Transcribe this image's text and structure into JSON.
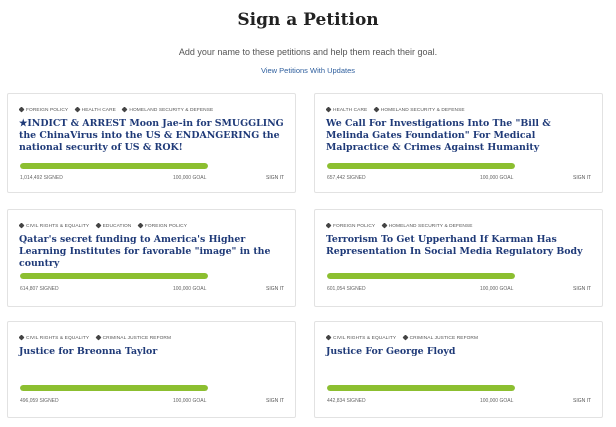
{
  "page": {
    "title": "Sign a Petition",
    "subtitle": "Add your name to these petitions and help them reach their goal.",
    "updates_link": "View Petitions With Updates"
  },
  "petitions": [
    {
      "tags": [
        "FOREIGN POLICY",
        "HEALTH CARE",
        "HOMELAND SECURITY & DEFENSE"
      ],
      "title": "★INDICT & ARREST Moon Jae-in for SMUGGLING the ChinaVirus into the US & ENDANGERING the national security of US & ROK!",
      "signed": "1,014,492 SIGNED",
      "goal": "100,000 GOAL",
      "sign_label": "SIGN IT",
      "progress": 1.0
    },
    {
      "tags": [
        "HEALTH CARE",
        "HOMELAND SECURITY & DEFENSE"
      ],
      "title": "We Call For Investigations Into The \"Bill & Melinda Gates Foundation\" For Medical Malpractice & Crimes Against Humanity",
      "signed": "657,442 SIGNED",
      "goal": "100,000 GOAL",
      "sign_label": "SIGN IT",
      "progress": 1.0
    },
    {
      "tags": [
        "CIVIL RIGHTS & EQUALITY",
        "EDUCATION",
        "FOREIGN POLICY"
      ],
      "title": "Qatar's secret funding to America's Higher Learning Institutes for favorable \"image\" in the country",
      "signed": "614,807 SIGNED",
      "goal": "100,000 GOAL",
      "sign_label": "SIGN IT",
      "progress": 1.0
    },
    {
      "tags": [
        "FOREIGN POLICY",
        "HOMELAND SECURITY & DEFENSE"
      ],
      "title": "Terrorism To Get Upperhand If Karman Has Representation In Social Media Regulatory Body",
      "signed": "601,054 SIGNED",
      "goal": "100,000 GOAL",
      "sign_label": "SIGN IT",
      "progress": 1.0
    },
    {
      "tags": [
        "CIVIL RIGHTS & EQUALITY",
        "CRIMINAL JUSTICE REFORM"
      ],
      "title": "Justice for Breonna Taylor",
      "signed": "496,059 SIGNED",
      "goal": "100,000 GOAL",
      "sign_label": "SIGN IT",
      "progress": 1.0
    },
    {
      "tags": [
        "CIVIL RIGHTS & EQUALITY",
        "CRIMINAL JUSTICE REFORM"
      ],
      "title": "Justice For George Floyd",
      "signed": "442,834 SIGNED",
      "goal": "100,000 GOAL",
      "sign_label": "SIGN IT",
      "progress": 1.0
    }
  ],
  "colors": {
    "title_blue": "#1f3a78",
    "progress_green": "#8cbf30",
    "link_blue": "#2f5f9e"
  }
}
